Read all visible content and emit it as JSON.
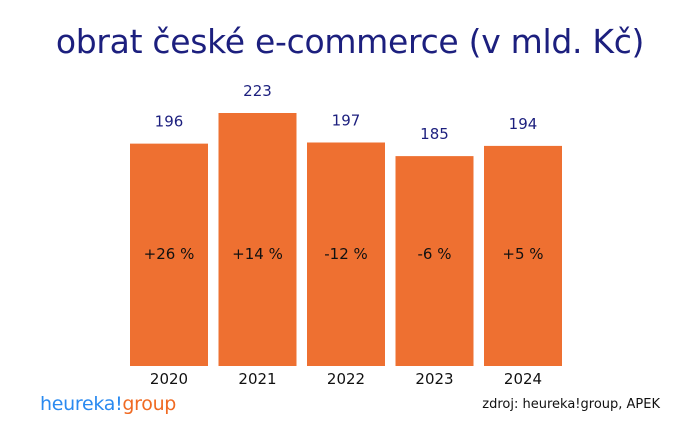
{
  "chart_data": {
    "type": "bar",
    "title": "obrat české e-commerce (v mld. Kč)",
    "categories": [
      "2020",
      "2021",
      "2022",
      "2023",
      "2024"
    ],
    "values": [
      196,
      223,
      197,
      185,
      194
    ],
    "value_labels": [
      "196",
      "223",
      "197",
      "185",
      "194"
    ],
    "change_labels": [
      "+26 %",
      "+14 %",
      "-12 %",
      "-6 %",
      "+5 %"
    ],
    "ylim": [
      0,
      223
    ],
    "grid": false,
    "colors": {
      "bar": "#ee7031",
      "value_label": "#1c1f7e",
      "title": "#1c1f7e"
    }
  },
  "footer": {
    "logo_part1": "heureka!",
    "logo_part2": "group",
    "source": "zdroj: heureka!group, APEK"
  }
}
